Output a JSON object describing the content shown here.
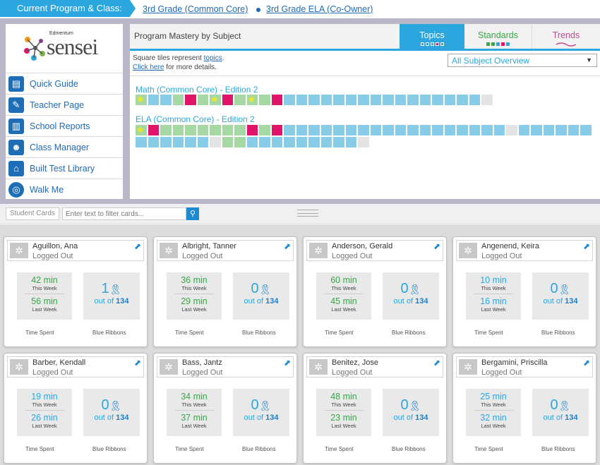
{
  "header": {
    "program_label": "Current Program & Class:",
    "crumb_grade": "3rd Grade (Common Core)",
    "crumb_class": "3rd Grade ELA (Co-Owner)"
  },
  "logo": {
    "small": "Edmentum",
    "main": "sensei"
  },
  "sidebar": {
    "items": [
      {
        "label": "Quick Guide",
        "icon": "book-icon"
      },
      {
        "label": "Teacher Page",
        "icon": "pencil-icon"
      },
      {
        "label": "School Reports",
        "icon": "chart-icon"
      },
      {
        "label": "Class Manager",
        "icon": "users-icon"
      },
      {
        "label": "Built Test Library",
        "icon": "library-icon"
      },
      {
        "label": "Walk Me",
        "icon": "lifebuoy-icon"
      }
    ]
  },
  "mastery": {
    "title": "Program Mastery by Subject",
    "tabs": {
      "topics": "Topics",
      "standards": "Standards",
      "trends": "Trends"
    },
    "desc_prefix": "Square tiles represent ",
    "desc_link": "topics",
    "desc_suffix": ".",
    "click_here": "Click here",
    "more_details": " for more details.",
    "dropdown_value": "All Subject Overview",
    "subjects": [
      {
        "name": "Math (Common Core) - Edition 2",
        "tiles": [
          "s",
          "b",
          "b",
          "g",
          "r",
          "g",
          "s",
          "r",
          "g",
          "s",
          "g",
          "r",
          "b",
          "b",
          "b",
          "b",
          "b",
          "b",
          "b",
          "b",
          "b",
          "b",
          "b",
          "b",
          "b",
          "b",
          "b",
          "b",
          "e"
        ]
      },
      {
        "name": "ELA (Common Core) - Edition 2",
        "tiles": [
          "s",
          "r",
          "g",
          "g",
          "g",
          "g",
          "g",
          "g",
          "g",
          "r",
          "g",
          "r",
          "b",
          "b",
          "b",
          "b",
          "b",
          "b",
          "b",
          "b",
          "b",
          "b",
          "b",
          "b",
          "b",
          "b",
          "b",
          "b",
          "b",
          "b",
          "e",
          "b",
          "b",
          "b",
          "b",
          "b",
          "b",
          "b",
          "b",
          "b",
          "b",
          "b",
          "b",
          "e",
          "g",
          "g",
          "b",
          "b",
          "b",
          "b",
          "b",
          "b",
          "b",
          "b",
          "b",
          "e"
        ]
      }
    ]
  },
  "filter": {
    "label": "Student Cards",
    "placeholder": "Enter text to filter cards..."
  },
  "cards": {
    "time_label": "Time Spent",
    "ribbons_label": "Blue Ribbons",
    "this_week": "This Week",
    "last_week": "Last Week",
    "out_of": "out of",
    "total": "134",
    "students": [
      {
        "name": "Aguillon, Ana",
        "status": "Logged Out",
        "this_week": "42 min",
        "last_week": "56 min",
        "ribbons": "1"
      },
      {
        "name": "Albright, Tanner",
        "status": "Logged Out",
        "this_week": "36 min",
        "last_week": "29 min",
        "ribbons": "0"
      },
      {
        "name": "Anderson, Gerald",
        "status": "Logged Out",
        "this_week": "60 min",
        "last_week": "45 min",
        "ribbons": "0"
      },
      {
        "name": "Angenend, Keira",
        "status": "Logged Out",
        "this_week": "10 min",
        "last_week": "16 min",
        "ribbons": "0"
      },
      {
        "name": "Barber, Kendall",
        "status": "Logged Out",
        "this_week": "19 min",
        "last_week": "26 min",
        "ribbons": "0"
      },
      {
        "name": "Bass, Jantz",
        "status": "Logged Out",
        "this_week": "34 min",
        "last_week": "37 min",
        "ribbons": "0"
      },
      {
        "name": "Benitez, Jose",
        "status": "Logged Out",
        "this_week": "48 min",
        "last_week": "23 min",
        "ribbons": "0"
      },
      {
        "name": "Bergamini, Priscilla",
        "status": "Logged Out",
        "this_week": "25 min",
        "last_week": "32 min",
        "ribbons": "0"
      }
    ]
  }
}
